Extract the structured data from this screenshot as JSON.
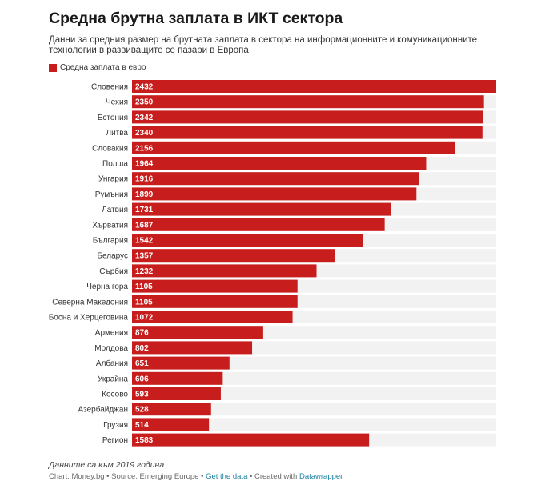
{
  "chart_data": {
    "type": "bar",
    "orientation": "horizontal",
    "title": "Средна брутна заплата в ИКТ сектора",
    "subtitle": "Данни за средния размер на брутната заплата в сектора на информационните и комуникационните технологии в развиващите се пазари в Европа",
    "legend": {
      "label": "Средна заплата в евро",
      "placement": "top-left"
    },
    "categories": [
      "Словения",
      "Чехия",
      "Естония",
      "Литва",
      "Словакия",
      "Полша",
      "Унгария",
      "Румъния",
      "Латвия",
      "Хърватия",
      "България",
      "Беларус",
      "Сърбия",
      "Черна гора",
      "Северна Македония",
      "Босна и Херцеговина",
      "Армения",
      "Молдова",
      "Албания",
      "Украйна",
      "Косово",
      "Азербайджан",
      "Грузия",
      "Регион"
    ],
    "series": [
      {
        "name": "Средна заплата в евро",
        "color": "#c71e1d",
        "values": [
          2432,
          2350,
          2342,
          2340,
          2156,
          1964,
          1916,
          1899,
          1731,
          1687,
          1542,
          1357,
          1232,
          1105,
          1105,
          1072,
          876,
          802,
          651,
          606,
          593,
          528,
          514,
          1583
        ]
      }
    ],
    "xlim": [
      0,
      2432
    ],
    "grid": false,
    "track_color": "#f2f2f2"
  },
  "notes": "Данните са към 2019 година",
  "footer": {
    "chart_by": "Chart: Money.bg",
    "source": "Source: Emerging Europe",
    "get_data": "Get the data",
    "created_with": "Created with",
    "tool": "Datawrapper",
    "sep": "•"
  }
}
